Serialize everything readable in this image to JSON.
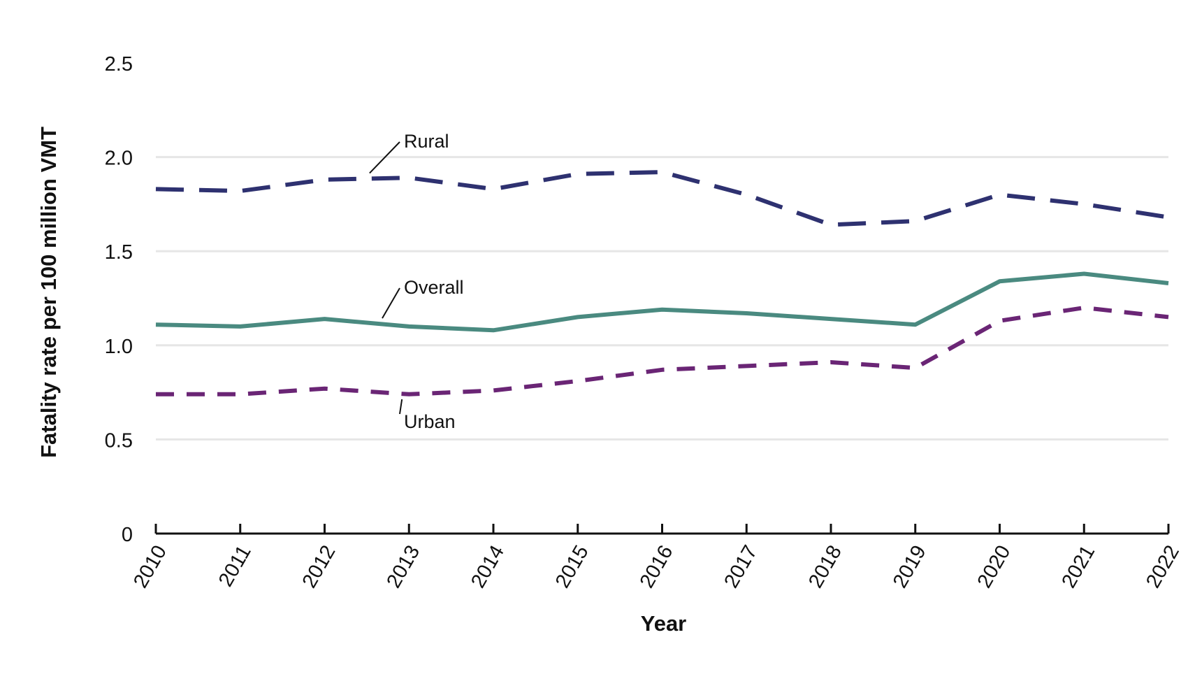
{
  "chart_data": {
    "type": "line",
    "title": "",
    "xlabel": "Year",
    "ylabel": "Fatality rate per 100 million VMT",
    "x": [
      "2010",
      "2011",
      "2012",
      "2013",
      "2014",
      "2015",
      "2016",
      "2017",
      "2018",
      "2019",
      "2020",
      "2021",
      "2022"
    ],
    "yticks": [
      "0",
      "0.5",
      "1.0",
      "1.5",
      "2.0",
      "2.5"
    ],
    "ylim": [
      0,
      2.5
    ],
    "grid": true,
    "legend": "inline labels",
    "series": [
      {
        "name": "Rural",
        "style": "long-dash",
        "color": "#2e3170",
        "values": [
          1.83,
          1.82,
          1.88,
          1.89,
          1.83,
          1.91,
          1.92,
          1.8,
          1.64,
          1.66,
          1.8,
          1.75,
          1.68
        ]
      },
      {
        "name": "Overall",
        "style": "solid",
        "color": "#4a8a80",
        "values": [
          1.11,
          1.1,
          1.14,
          1.1,
          1.08,
          1.15,
          1.19,
          1.17,
          1.14,
          1.11,
          1.34,
          1.38,
          1.33
        ]
      },
      {
        "name": "Urban",
        "style": "short-dash",
        "color": "#6a2575",
        "values": [
          0.74,
          0.74,
          0.77,
          0.74,
          0.76,
          0.81,
          0.87,
          0.89,
          0.91,
          0.88,
          1.13,
          1.2,
          1.15
        ]
      }
    ]
  }
}
